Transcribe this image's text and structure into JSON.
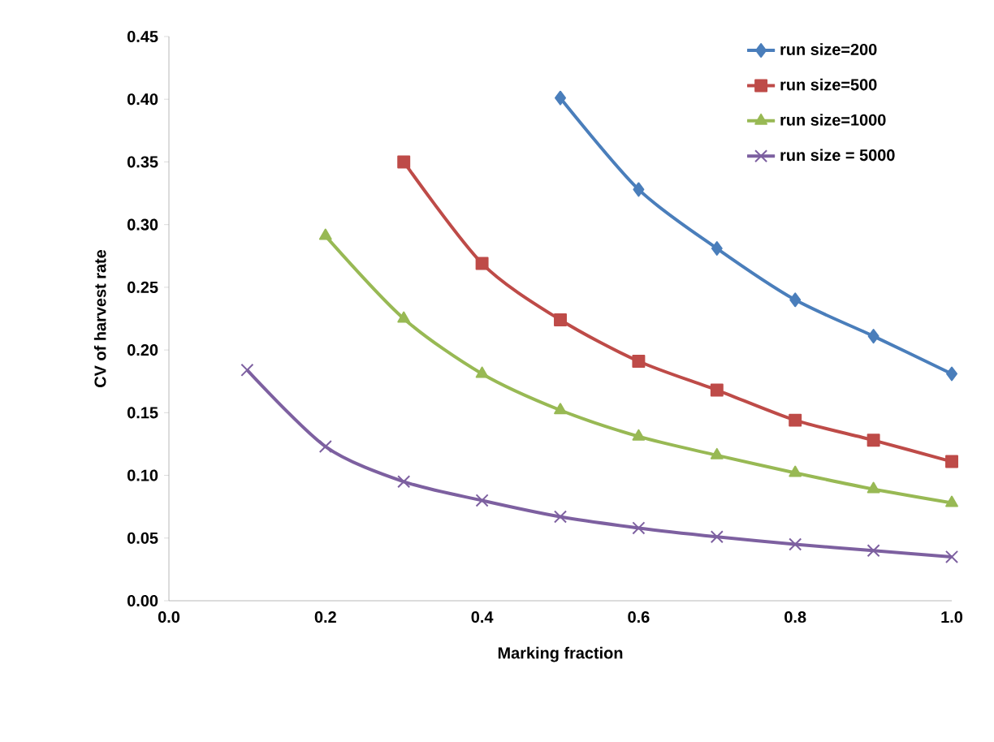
{
  "chart_data": {
    "type": "line",
    "xlabel": "Marking fraction",
    "ylabel": "CV of harvest rate",
    "xlim": [
      0,
      1
    ],
    "ylim": [
      0,
      0.45
    ],
    "xticks": [
      {
        "value": 0,
        "label": "0.0"
      },
      {
        "value": 0.2,
        "label": "0.2"
      },
      {
        "value": 0.4,
        "label": "0.4"
      },
      {
        "value": 0.6,
        "label": "0.6"
      },
      {
        "value": 0.8,
        "label": "0.8"
      },
      {
        "value": 1,
        "label": "1.0"
      }
    ],
    "yticks": [
      {
        "value": 0,
        "label": "0.00"
      },
      {
        "value": 0.05,
        "label": "0.05"
      },
      {
        "value": 0.1,
        "label": "0.10"
      },
      {
        "value": 0.15,
        "label": "0.15"
      },
      {
        "value": 0.2,
        "label": "0.20"
      },
      {
        "value": 0.25,
        "label": "0.25"
      },
      {
        "value": 0.3,
        "label": "0.30"
      },
      {
        "value": 0.35,
        "label": "0.35"
      },
      {
        "value": 0.4,
        "label": "0.40"
      },
      {
        "value": 0.45,
        "label": "0.45"
      }
    ],
    "grid": false,
    "legend": "top right",
    "line_style": "solid",
    "series": [
      {
        "name": "run size=200",
        "color": "#4a7ebb",
        "marker": "diamond",
        "x": [
          0.5,
          0.6,
          0.7,
          0.8,
          0.9,
          1.0
        ],
        "values": [
          0.401,
          0.328,
          0.281,
          0.24,
          0.211,
          0.181
        ]
      },
      {
        "name": "run size=500",
        "color": "#be4b48",
        "marker": "square",
        "x": [
          0.3,
          0.4,
          0.5,
          0.6,
          0.7,
          0.8,
          0.9,
          1.0
        ],
        "values": [
          0.35,
          0.269,
          0.224,
          0.191,
          0.168,
          0.144,
          0.128,
          0.111
        ]
      },
      {
        "name": "run size=1000",
        "color": "#98b954",
        "marker": "triangle",
        "x": [
          0.2,
          0.3,
          0.4,
          0.5,
          0.6,
          0.7,
          0.8,
          0.9,
          1.0
        ],
        "values": [
          0.291,
          0.225,
          0.181,
          0.152,
          0.131,
          0.116,
          0.102,
          0.089,
          0.078
        ]
      },
      {
        "name": "run size = 5000",
        "color": "#7d60a0",
        "marker": "cross",
        "x": [
          0.1,
          0.2,
          0.3,
          0.4,
          0.5,
          0.6,
          0.7,
          0.8,
          0.9,
          1.0
        ],
        "values": [
          0.184,
          0.123,
          0.095,
          0.08,
          0.067,
          0.058,
          0.051,
          0.045,
          0.04,
          0.035
        ]
      }
    ]
  }
}
